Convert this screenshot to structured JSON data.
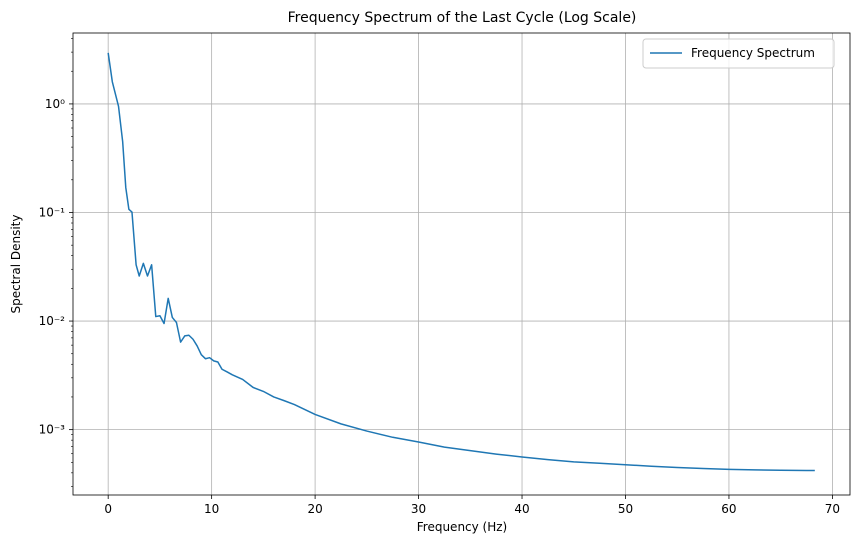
{
  "chart_data": {
    "type": "line",
    "title": "Frequency Spectrum of the Last Cycle (Log Scale)",
    "xlabel": "Frequency (Hz)",
    "ylabel": "Spectral Density",
    "yscale": "log",
    "xlim": [
      -3.4,
      71.7
    ],
    "ylim": [
      0.00025,
      4.5
    ],
    "x_ticks": [
      0,
      10,
      20,
      30,
      40,
      50,
      60,
      70
    ],
    "x_tick_labels": [
      "0",
      "10",
      "20",
      "30",
      "40",
      "50",
      "60",
      "70"
    ],
    "y_ticks": [
      0.001,
      0.01,
      0.1,
      1
    ],
    "y_tick_labels": [
      "10⁻³",
      "10⁻²",
      "10⁻¹",
      "10⁰"
    ],
    "grid": true,
    "legend_position": "top-right",
    "series": [
      {
        "name": "Frequency Spectrum",
        "color": "#1f77b4",
        "x": [
          0,
          0.4,
          1.0,
          1.4,
          1.7,
          2.0,
          2.3,
          2.7,
          3.0,
          3.4,
          3.8,
          4.2,
          4.6,
          5.0,
          5.4,
          5.8,
          6.2,
          6.6,
          7.0,
          7.4,
          7.8,
          8.2,
          8.6,
          9.0,
          9.4,
          9.8,
          10.2,
          10.6,
          11.0,
          11.5,
          12.0,
          13.0,
          14.0,
          15.0,
          16.0,
          17.0,
          18.0,
          20.0,
          22.5,
          25.0,
          27.5,
          30.0,
          32.5,
          35.0,
          37.5,
          40.0,
          42.5,
          45.0,
          47.5,
          50.0,
          52.5,
          55.0,
          57.5,
          60.0,
          62.5,
          65.0,
          67.5,
          68.3
        ],
        "values": [
          2.95,
          1.6,
          0.95,
          0.45,
          0.17,
          0.107,
          0.101,
          0.033,
          0.026,
          0.034,
          0.026,
          0.033,
          0.011,
          0.0112,
          0.0095,
          0.0162,
          0.0108,
          0.0097,
          0.0064,
          0.0073,
          0.0074,
          0.0068,
          0.0059,
          0.0049,
          0.0045,
          0.0046,
          0.0043,
          0.0042,
          0.0036,
          0.0034,
          0.0032,
          0.0029,
          0.00245,
          0.00225,
          0.002,
          0.00185,
          0.0017,
          0.00138,
          0.00113,
          0.00097,
          0.00085,
          0.00077,
          0.00069,
          0.00064,
          0.000595,
          0.00056,
          0.00053,
          0.000505,
          0.00049,
          0.000475,
          0.00046,
          0.000448,
          0.000438,
          0.00043,
          0.000426,
          0.000423,
          0.00042,
          0.00042
        ]
      }
    ]
  }
}
